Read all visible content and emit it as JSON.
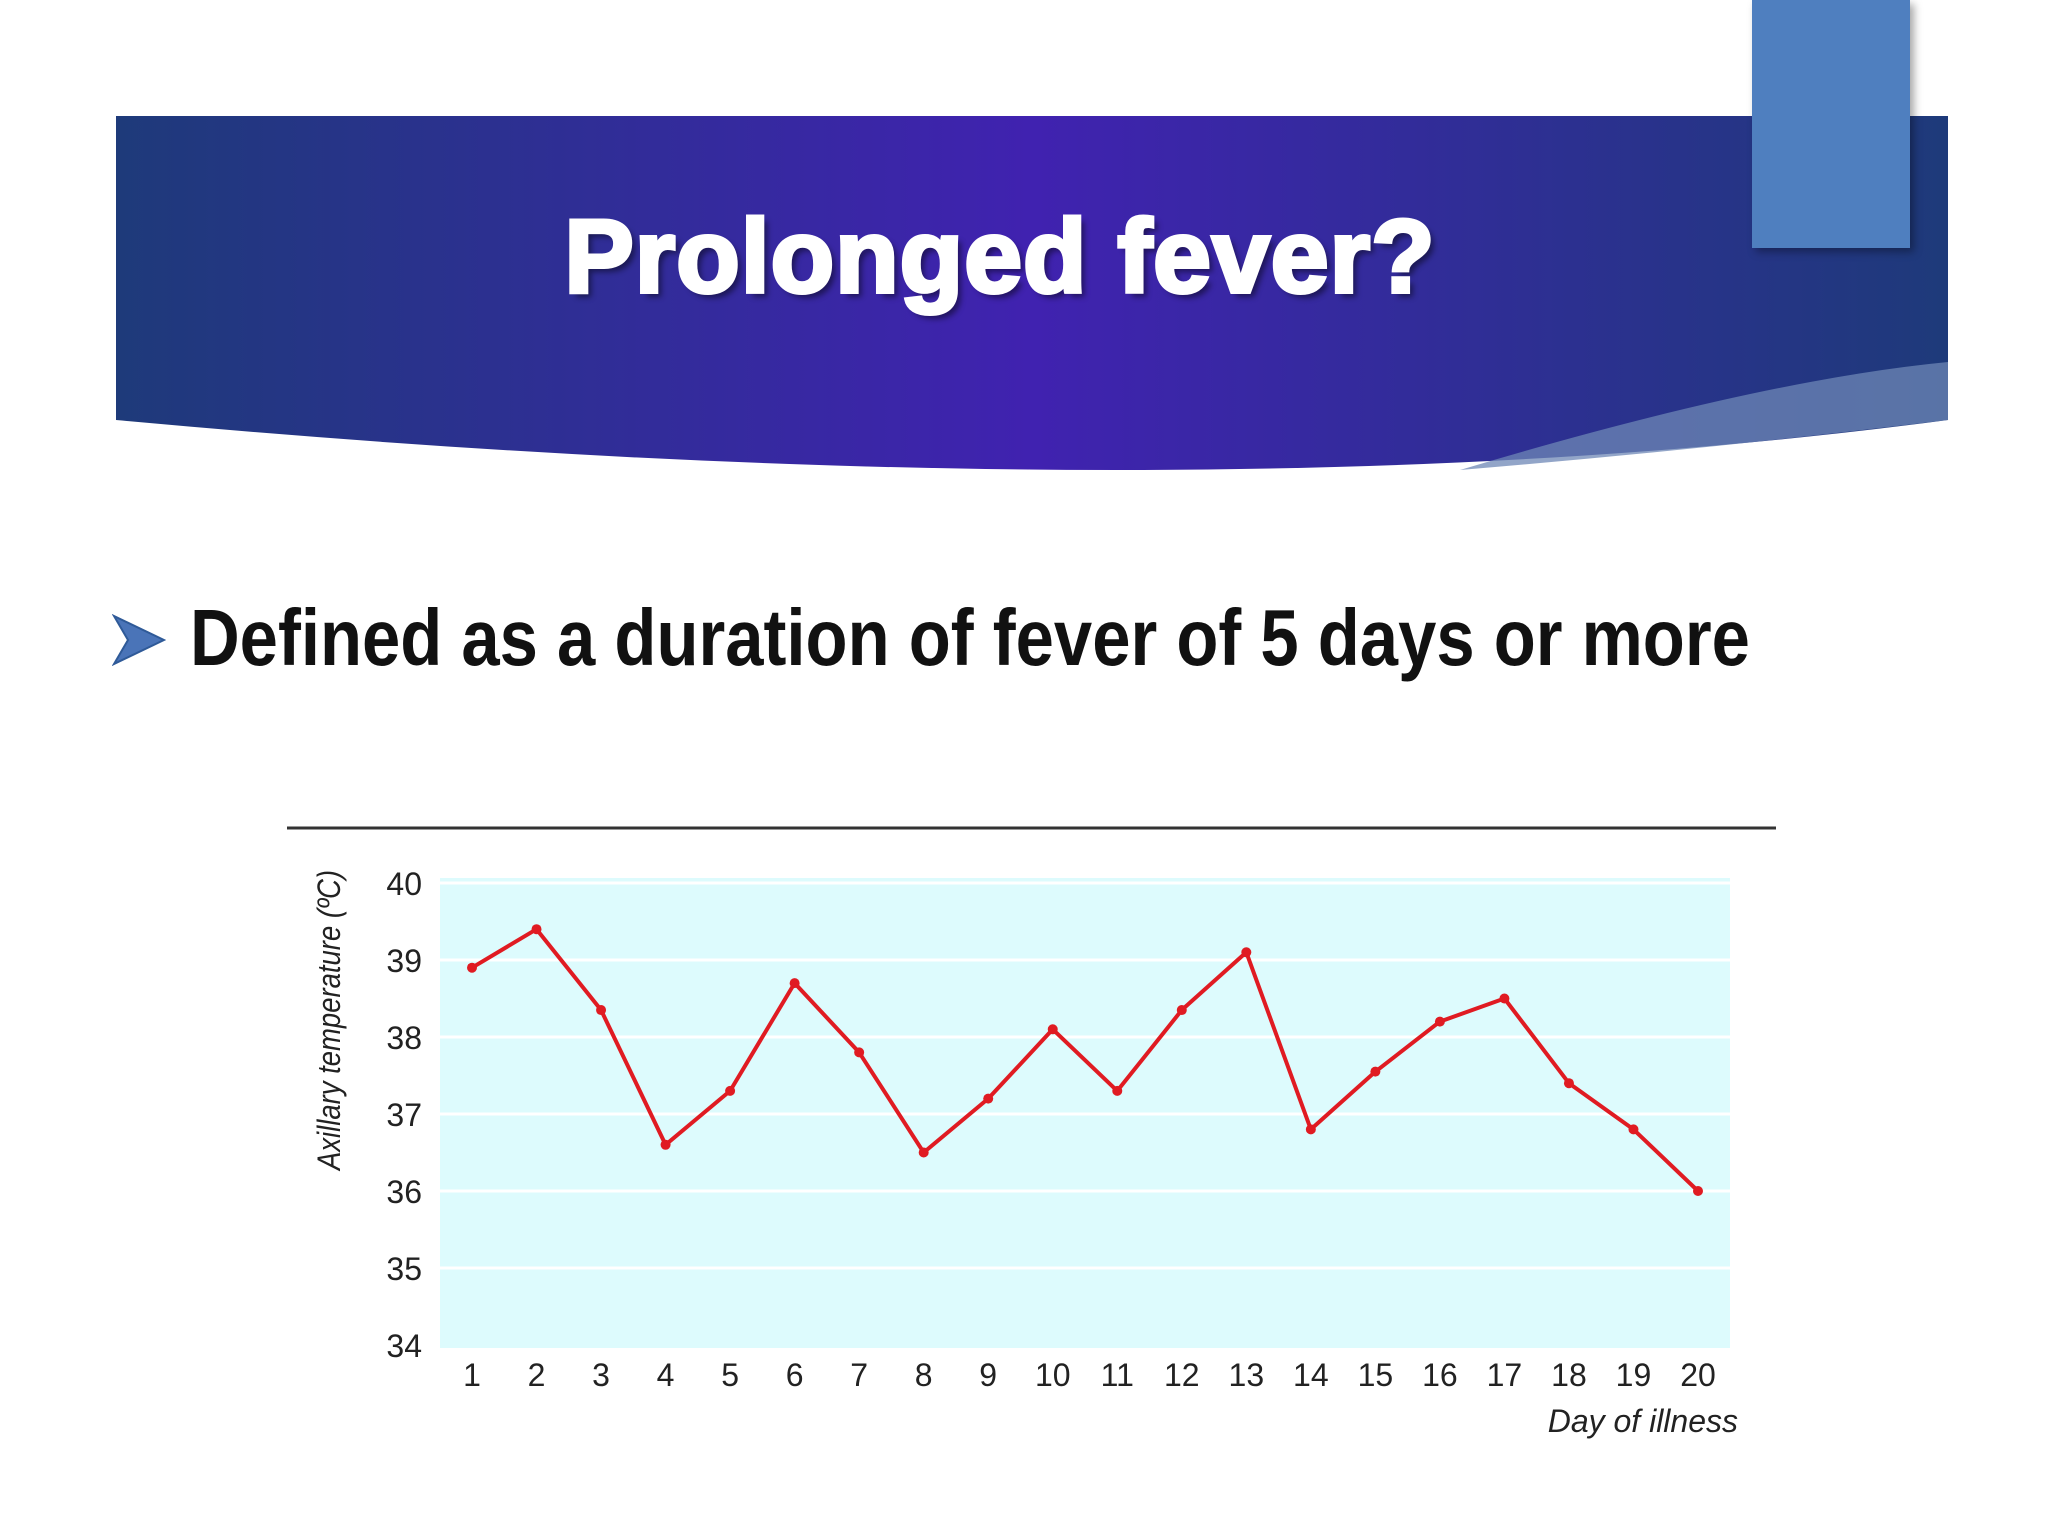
{
  "slide": {
    "title": "Prolonged fever?",
    "bullet": "Defined as a duration of fever of 5 days or more"
  },
  "colors": {
    "banner_gradient": [
      "#1e3a7a",
      "#4022b0",
      "#1e3a7a"
    ],
    "accent_tab": "#4f7fbf",
    "bullet_arrow": "#4a74b8",
    "plot_background": "#ddfbfd",
    "series_line": "#e01b22"
  },
  "icons": {
    "bullet": "arrowhead-bullet-icon"
  },
  "chart_data": {
    "type": "line",
    "title": "",
    "xlabel": "Day of illness",
    "ylabel": "Axillary temperature (ºC)",
    "ylim": [
      34,
      40
    ],
    "yticks": [
      34,
      35,
      36,
      37,
      38,
      39,
      40
    ],
    "grid": true,
    "x": [
      1,
      2,
      3,
      4,
      5,
      6,
      7,
      8,
      9,
      10,
      11,
      12,
      13,
      14,
      15,
      16,
      17,
      18,
      19,
      20
    ],
    "series": [
      {
        "values": [
          38.9,
          39.4,
          38.35,
          36.6,
          37.3,
          38.7,
          37.8,
          36.5,
          37.2,
          38.1,
          37.3,
          38.35,
          39.1,
          36.8,
          37.55,
          38.2,
          38.5,
          37.4,
          36.8,
          36.0
        ]
      }
    ]
  }
}
